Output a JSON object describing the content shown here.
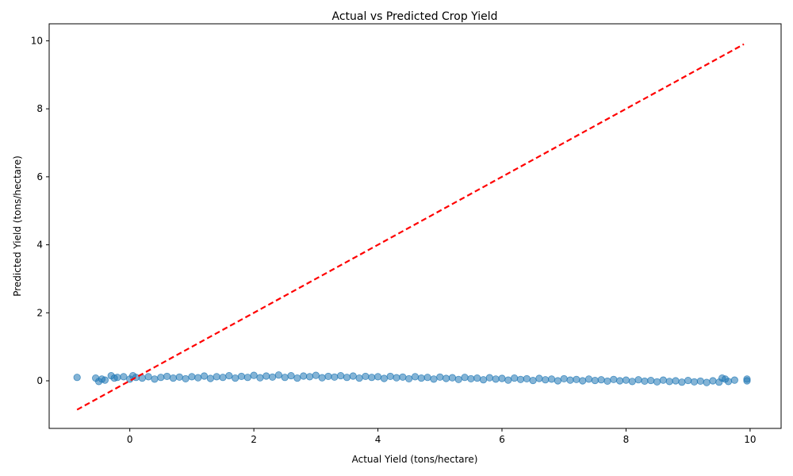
{
  "chart_data": {
    "type": "scatter",
    "title": "Actual vs Predicted Crop Yield",
    "xlabel": "Actual Yield (tons/hectare)",
    "ylabel": "Predicted Yield (tons/hectare)",
    "xlim": [
      -1.3,
      10.5
    ],
    "ylim": [
      -1.4,
      10.5
    ],
    "xticks": [
      0,
      2,
      4,
      6,
      8,
      10
    ],
    "yticks": [
      0,
      2,
      4,
      6,
      8,
      10
    ],
    "grid": false,
    "legend": "none",
    "colors": {
      "points": "#1f77b4",
      "reference_line": "#ff0000"
    },
    "reference_line": {
      "from": [
        -0.85,
        -0.85
      ],
      "to": [
        9.9,
        9.9
      ],
      "style": "dashed"
    },
    "series": [
      {
        "x": [
          -0.85,
          -0.55,
          -0.5,
          -0.45,
          -0.4,
          -0.3,
          -0.25,
          -0.2,
          -0.1,
          0.0,
          0.05,
          0.1,
          0.2,
          0.3,
          0.4,
          0.5,
          0.6,
          0.7,
          0.8,
          0.9,
          1.0,
          1.1,
          1.2,
          1.3,
          1.4,
          1.5,
          1.6,
          1.7,
          1.8,
          1.9,
          2.0,
          2.1,
          2.2,
          2.3,
          2.4,
          2.5,
          2.6,
          2.7,
          2.8,
          2.9,
          3.0,
          3.1,
          3.2,
          3.3,
          3.4,
          3.5,
          3.6,
          3.7,
          3.8,
          3.9,
          4.0,
          4.1,
          4.2,
          4.3,
          4.4,
          4.5,
          4.6,
          4.7,
          4.8,
          4.9,
          5.0,
          5.1,
          5.2,
          5.3,
          5.4,
          5.5,
          5.6,
          5.7,
          5.8,
          5.9,
          6.0,
          6.1,
          6.2,
          6.3,
          6.4,
          6.5,
          6.6,
          6.7,
          6.8,
          6.9,
          7.0,
          7.1,
          7.2,
          7.3,
          7.4,
          7.5,
          7.6,
          7.7,
          7.8,
          7.9,
          8.0,
          8.1,
          8.2,
          8.3,
          8.4,
          8.5,
          8.6,
          8.7,
          8.8,
          8.9,
          9.0,
          9.1,
          9.2,
          9.3,
          9.4,
          9.5,
          9.55,
          9.6,
          9.65,
          9.75,
          9.95,
          9.95
        ],
        "y": [
          0.1,
          0.08,
          -0.02,
          0.05,
          0.02,
          0.15,
          0.08,
          0.1,
          0.12,
          0.05,
          0.15,
          0.1,
          0.08,
          0.12,
          0.05,
          0.1,
          0.13,
          0.08,
          0.11,
          0.06,
          0.12,
          0.09,
          0.14,
          0.07,
          0.12,
          0.1,
          0.15,
          0.08,
          0.13,
          0.1,
          0.16,
          0.09,
          0.14,
          0.11,
          0.17,
          0.1,
          0.15,
          0.08,
          0.14,
          0.12,
          0.16,
          0.09,
          0.13,
          0.11,
          0.15,
          0.1,
          0.14,
          0.08,
          0.13,
          0.1,
          0.12,
          0.07,
          0.13,
          0.09,
          0.11,
          0.06,
          0.12,
          0.08,
          0.1,
          0.05,
          0.11,
          0.07,
          0.09,
          0.04,
          0.1,
          0.06,
          0.08,
          0.03,
          0.09,
          0.05,
          0.07,
          0.02,
          0.08,
          0.04,
          0.06,
          0.01,
          0.07,
          0.03,
          0.05,
          0.0,
          0.06,
          0.02,
          0.04,
          0.0,
          0.05,
          0.01,
          0.03,
          -0.01,
          0.04,
          0.0,
          0.02,
          -0.02,
          0.03,
          -0.01,
          0.01,
          -0.03,
          0.02,
          -0.02,
          0.0,
          -0.04,
          0.01,
          -0.03,
          -0.01,
          -0.05,
          0.0,
          -0.04,
          0.08,
          0.05,
          -0.02,
          0.02,
          0.05,
          0.0
        ]
      }
    ]
  }
}
